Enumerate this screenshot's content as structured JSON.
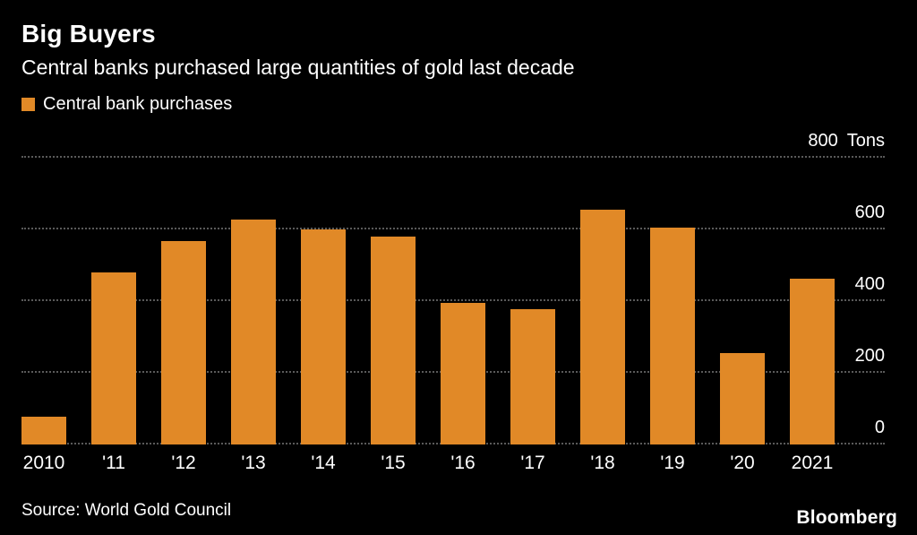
{
  "header": {
    "title": "Big Buyers",
    "subtitle": "Central banks purchased large quantities of gold last decade"
  },
  "legend": {
    "label": "Central bank purchases",
    "color": "#E18927"
  },
  "chart_data": {
    "type": "bar",
    "title": "Big Buyers",
    "subtitle": "Central banks purchased large quantities of gold last decade",
    "categories": [
      "2010",
      "'11",
      "'12",
      "'13",
      "'14",
      "'15",
      "'16",
      "'17",
      "'18",
      "'19",
      "'20",
      "2021"
    ],
    "values": [
      79,
      481,
      569,
      629,
      601,
      580,
      395,
      379,
      656,
      605,
      255,
      463
    ],
    "series_name": "Central bank purchases",
    "xlabel": "",
    "ylabel": "",
    "y_unit": "Tons",
    "ylim": [
      0,
      800
    ],
    "yticks": [
      0,
      200,
      400,
      600,
      800
    ],
    "bar_color": "#E18927",
    "background_color": "#000000",
    "grid": "dotted horizontal gridlines",
    "legend_position": "top-left",
    "y_axis_side": "right"
  },
  "footer": {
    "source": "Source: World Gold Council",
    "brand": "Bloomberg"
  }
}
